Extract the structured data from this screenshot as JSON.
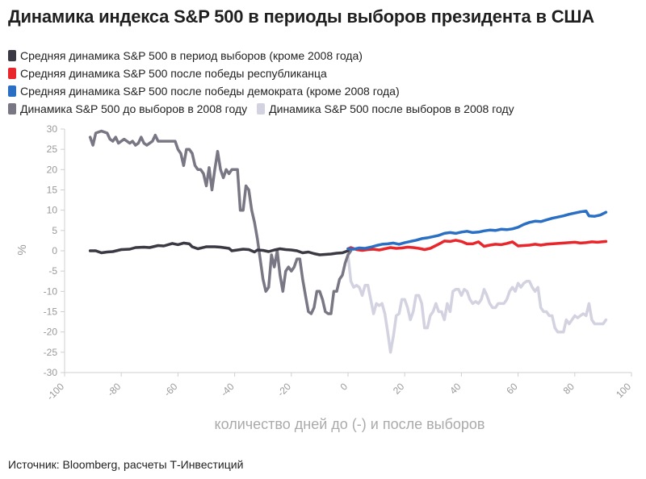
{
  "title": "Динамика индекса S&P 500 в периоды выборов президента в США",
  "source": "Источник: Bloomberg, расчеты Т-Инвестиций",
  "chart_data": {
    "type": "line",
    "title": "Динамика индекса S&P 500 в периоды выборов президента в США",
    "xlabel": "количество дней до (-) и после выборов",
    "ylabel": "%",
    "xlim": [
      -100,
      100
    ],
    "ylim": [
      -30,
      30
    ],
    "xticks": [
      -100,
      -80,
      -60,
      -40,
      -20,
      0,
      20,
      40,
      60,
      80,
      100
    ],
    "yticks": [
      30,
      25,
      20,
      15,
      10,
      5,
      0,
      -5,
      -10,
      -15,
      -20,
      -25,
      -30
    ],
    "grid": false,
    "legend_position": "top-left",
    "series": [
      {
        "name": "Средняя динамика S&P 500 в период выборов (кроме 2008 года)",
        "color": "#3b3a44",
        "points": [
          [
            -91,
            0
          ],
          [
            -89,
            0
          ],
          [
            -87,
            -0.5
          ],
          [
            -85,
            -0.3
          ],
          [
            -83,
            -0.2
          ],
          [
            -80,
            0.3
          ],
          [
            -77,
            0.4
          ],
          [
            -75,
            0.8
          ],
          [
            -72,
            0.9
          ],
          [
            -70,
            0.8
          ],
          [
            -67,
            1.3
          ],
          [
            -65,
            1.2
          ],
          [
            -62,
            1.8
          ],
          [
            -60,
            1.5
          ],
          [
            -58,
            1.9
          ],
          [
            -56,
            1.7
          ],
          [
            -55,
            1.0
          ],
          [
            -53,
            0.5
          ],
          [
            -50,
            1.0
          ],
          [
            -47,
            1.0
          ],
          [
            -45,
            0.9
          ],
          [
            -42,
            0.6
          ],
          [
            -41,
            0
          ],
          [
            -39,
            0.2
          ],
          [
            -37,
            0.4
          ],
          [
            -35,
            0.3
          ],
          [
            -33,
            -0.3
          ],
          [
            -32,
            0.2
          ],
          [
            -30,
            0.1
          ],
          [
            -28,
            -0.2
          ],
          [
            -26,
            0.2
          ],
          [
            -24,
            0.5
          ],
          [
            -22,
            0.3
          ],
          [
            -20,
            0.2
          ],
          [
            -18,
            0.0
          ],
          [
            -16,
            -0.5
          ],
          [
            -14,
            -0.3
          ],
          [
            -12,
            -0.7
          ],
          [
            -10,
            -1.0
          ],
          [
            -8,
            -0.9
          ],
          [
            -6,
            -0.8
          ],
          [
            -4,
            -0.6
          ],
          [
            -2,
            -0.5
          ],
          [
            0,
            0
          ]
        ]
      },
      {
        "name": "Средняя динамика S&P 500 после победы республиканца",
        "color": "#e8262c",
        "points": [
          [
            0,
            0.5
          ],
          [
            1,
            0.8
          ],
          [
            3,
            0.3
          ],
          [
            5,
            0.1
          ],
          [
            7,
            0.3
          ],
          [
            9,
            0.4
          ],
          [
            11,
            0.2
          ],
          [
            13,
            0.5
          ],
          [
            15,
            0.8
          ],
          [
            17,
            0.6
          ],
          [
            19,
            0.7
          ],
          [
            21,
            0.9
          ],
          [
            23,
            0.8
          ],
          [
            25,
            0.6
          ],
          [
            27,
            0.3
          ],
          [
            29,
            0.6
          ],
          [
            31,
            1.3
          ],
          [
            33,
            2.0
          ],
          [
            34,
            2.4
          ],
          [
            36,
            2.3
          ],
          [
            38,
            2.6
          ],
          [
            40,
            2.3
          ],
          [
            42,
            1.7
          ],
          [
            44,
            1.7
          ],
          [
            46,
            2.2
          ],
          [
            48,
            1.1
          ],
          [
            50,
            1.4
          ],
          [
            52,
            1.6
          ],
          [
            54,
            1.5
          ],
          [
            56,
            1.8
          ],
          [
            58,
            2.2
          ],
          [
            60,
            1.2
          ],
          [
            62,
            1.3
          ],
          [
            64,
            1.4
          ],
          [
            66,
            1.6
          ],
          [
            68,
            1.4
          ],
          [
            70,
            1.6
          ],
          [
            72,
            1.7
          ],
          [
            74,
            1.8
          ],
          [
            76,
            1.9
          ],
          [
            78,
            2.0
          ],
          [
            80,
            2.1
          ],
          [
            82,
            1.9
          ],
          [
            84,
            2.0
          ],
          [
            86,
            2.2
          ],
          [
            88,
            2.1
          ],
          [
            91,
            2.3
          ]
        ]
      },
      {
        "name": "Средняя динамика S&P 500 после победы демократа (кроме 2008 года)",
        "color": "#2b6fc4",
        "points": [
          [
            0,
            0.5
          ],
          [
            2,
            0.4
          ],
          [
            4,
            0.7
          ],
          [
            6,
            0.6
          ],
          [
            8,
            0.9
          ],
          [
            10,
            1.3
          ],
          [
            12,
            1.6
          ],
          [
            14,
            1.7
          ],
          [
            16,
            1.9
          ],
          [
            18,
            1.6
          ],
          [
            20,
            2.0
          ],
          [
            22,
            2.3
          ],
          [
            24,
            2.6
          ],
          [
            26,
            3.0
          ],
          [
            28,
            3.2
          ],
          [
            30,
            3.5
          ],
          [
            32,
            3.8
          ],
          [
            34,
            4.3
          ],
          [
            36,
            4.5
          ],
          [
            38,
            4.3
          ],
          [
            40,
            4.6
          ],
          [
            42,
            4.8
          ],
          [
            44,
            4.5
          ],
          [
            46,
            4.6
          ],
          [
            48,
            4.9
          ],
          [
            50,
            5.1
          ],
          [
            52,
            5.0
          ],
          [
            54,
            5.3
          ],
          [
            56,
            5.2
          ],
          [
            58,
            5.4
          ],
          [
            60,
            5.8
          ],
          [
            62,
            6.5
          ],
          [
            64,
            7.0
          ],
          [
            66,
            7.3
          ],
          [
            68,
            7.2
          ],
          [
            70,
            7.6
          ],
          [
            72,
            8.0
          ],
          [
            74,
            8.3
          ],
          [
            76,
            8.6
          ],
          [
            78,
            9.0
          ],
          [
            80,
            9.3
          ],
          [
            82,
            9.6
          ],
          [
            84,
            9.8
          ],
          [
            85,
            8.6
          ],
          [
            87,
            8.5
          ],
          [
            89,
            8.8
          ],
          [
            91,
            9.5
          ]
        ]
      },
      {
        "name": "Динамика S&P 500 до выборов в 2008 году",
        "color": "#7a7785",
        "points": [
          [
            -91,
            28
          ],
          [
            -90,
            26
          ],
          [
            -89,
            29
          ],
          [
            -87,
            29.5
          ],
          [
            -85,
            29
          ],
          [
            -84,
            27.5
          ],
          [
            -83,
            27
          ],
          [
            -82,
            28
          ],
          [
            -81,
            26.5
          ],
          [
            -80,
            27
          ],
          [
            -79,
            27.5
          ],
          [
            -78,
            27
          ],
          [
            -77,
            26.5
          ],
          [
            -76,
            27
          ],
          [
            -75,
            26
          ],
          [
            -74,
            26.5
          ],
          [
            -73,
            28
          ],
          [
            -72,
            26.5
          ],
          [
            -71,
            26
          ],
          [
            -70,
            26.5
          ],
          [
            -69,
            27
          ],
          [
            -68,
            28.5
          ],
          [
            -67,
            27
          ],
          [
            -65,
            27
          ],
          [
            -63,
            27
          ],
          [
            -61,
            27
          ],
          [
            -60,
            25
          ],
          [
            -59,
            24
          ],
          [
            -58,
            21
          ],
          [
            -57,
            25
          ],
          [
            -56,
            25
          ],
          [
            -55,
            24
          ],
          [
            -54,
            21
          ],
          [
            -53,
            20
          ],
          [
            -52,
            20
          ],
          [
            -51,
            19
          ],
          [
            -50,
            16
          ],
          [
            -49,
            20.5
          ],
          [
            -48,
            15
          ],
          [
            -47,
            20
          ],
          [
            -46,
            24.5
          ],
          [
            -45,
            20
          ],
          [
            -44,
            18
          ],
          [
            -43,
            20
          ],
          [
            -42,
            19
          ],
          [
            -41,
            20
          ],
          [
            -40,
            20
          ],
          [
            -39,
            20
          ],
          [
            -38,
            10
          ],
          [
            -37,
            10
          ],
          [
            -36,
            16
          ],
          [
            -35,
            15
          ],
          [
            -34,
            10
          ],
          [
            -33,
            7
          ],
          [
            -32,
            3
          ],
          [
            -31,
            -2
          ],
          [
            -30,
            -7
          ],
          [
            -29,
            -10
          ],
          [
            -28,
            -9
          ],
          [
            -27,
            -1
          ],
          [
            -26,
            -4
          ],
          [
            -25,
            0
          ],
          [
            -24,
            -6
          ],
          [
            -23,
            -10
          ],
          [
            -22,
            -5
          ],
          [
            -21,
            -4
          ],
          [
            -20,
            -5
          ],
          [
            -19,
            -4
          ],
          [
            -18,
            -2
          ],
          [
            -17,
            -2
          ],
          [
            -16,
            -7
          ],
          [
            -15,
            -11
          ],
          [
            -14,
            -15
          ],
          [
            -13,
            -15.5
          ],
          [
            -12,
            -14
          ],
          [
            -11,
            -10
          ],
          [
            -10,
            -10
          ],
          [
            -9,
            -12
          ],
          [
            -8,
            -15
          ],
          [
            -7,
            -15.5
          ],
          [
            -6,
            -15.5
          ],
          [
            -5,
            -10
          ],
          [
            -4,
            -10
          ],
          [
            -3,
            -7
          ],
          [
            -2,
            -6
          ],
          [
            -1,
            -3
          ],
          [
            0,
            -1
          ],
          [
            1,
            0
          ]
        ]
      },
      {
        "name": "Динамика S&P 500 после выборов в 2008 году",
        "color": "#d3d2e0",
        "points": [
          [
            0,
            -1
          ],
          [
            1,
            -7.5
          ],
          [
            2,
            -9
          ],
          [
            3,
            -8.5
          ],
          [
            4,
            -9
          ],
          [
            5,
            -11
          ],
          [
            6,
            -8.5
          ],
          [
            7,
            -8.5
          ],
          [
            8,
            -12
          ],
          [
            9,
            -15.5
          ],
          [
            10,
            -13
          ],
          [
            11,
            -13.5
          ],
          [
            12,
            -13
          ],
          [
            13,
            -15.5
          ],
          [
            14,
            -20
          ],
          [
            15,
            -25
          ],
          [
            16,
            -21
          ],
          [
            17,
            -16
          ],
          [
            18,
            -15.5
          ],
          [
            19,
            -12
          ],
          [
            20,
            -12
          ],
          [
            21,
            -14
          ],
          [
            22,
            -17
          ],
          [
            23,
            -15
          ],
          [
            24,
            -11
          ],
          [
            25,
            -11
          ],
          [
            26,
            -13
          ],
          [
            27,
            -19
          ],
          [
            28,
            -19
          ],
          [
            29,
            -16
          ],
          [
            30,
            -15
          ],
          [
            31,
            -13
          ],
          [
            32,
            -15
          ],
          [
            33,
            -15
          ],
          [
            34,
            -17
          ],
          [
            35,
            -13
          ],
          [
            36,
            -15
          ],
          [
            37,
            -10
          ],
          [
            38,
            -9.5
          ],
          [
            39,
            -9.5
          ],
          [
            40,
            -11
          ],
          [
            41,
            -9.5
          ],
          [
            42,
            -10
          ],
          [
            43,
            -12
          ],
          [
            44,
            -13
          ],
          [
            45,
            -12.5
          ],
          [
            46,
            -13
          ],
          [
            47,
            -12
          ],
          [
            48,
            -9.5
          ],
          [
            49,
            -11
          ],
          [
            50,
            -13
          ],
          [
            51,
            -14
          ],
          [
            52,
            -14
          ],
          [
            53,
            -13
          ],
          [
            54,
            -13
          ],
          [
            55,
            -13
          ],
          [
            56,
            -12
          ],
          [
            57,
            -10
          ],
          [
            58,
            -9
          ],
          [
            59,
            -10
          ],
          [
            60,
            -8
          ],
          [
            61,
            -9
          ],
          [
            62,
            -8
          ],
          [
            63,
            -7.5
          ],
          [
            64,
            -7.5
          ],
          [
            65,
            -9
          ],
          [
            66,
            -10
          ],
          [
            67,
            -9
          ],
          [
            68,
            -14
          ],
          [
            69,
            -15
          ],
          [
            70,
            -15
          ],
          [
            71,
            -16
          ],
          [
            72,
            -16
          ],
          [
            73,
            -19
          ],
          [
            74,
            -20
          ],
          [
            75,
            -20
          ],
          [
            76,
            -20
          ],
          [
            77,
            -17
          ],
          [
            78,
            -18
          ],
          [
            79,
            -17
          ],
          [
            80,
            -16
          ],
          [
            81,
            -16.5
          ],
          [
            82,
            -16
          ],
          [
            83,
            -15.5
          ],
          [
            84,
            -16
          ],
          [
            85,
            -13
          ],
          [
            86,
            -17
          ],
          [
            87,
            -18
          ],
          [
            88,
            -18
          ],
          [
            89,
            -18
          ],
          [
            90,
            -18
          ],
          [
            91,
            -17
          ]
        ]
      }
    ]
  }
}
